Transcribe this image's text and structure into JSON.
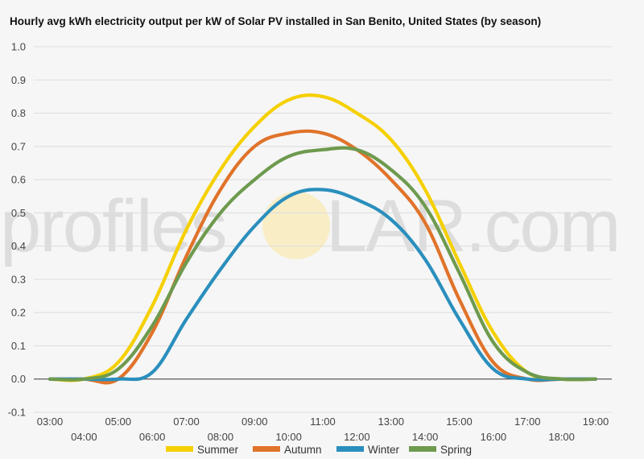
{
  "title": "Hourly avg kWh electricity output per kW of Solar PV installed in San Benito, United States (by season)",
  "watermark": {
    "left": "profiles",
    "right": "LAR.com"
  },
  "colors": {
    "summer": "#f5d000",
    "autumn": "#e0732a",
    "winter": "#2a8fbd",
    "spring": "#6e9a4e",
    "zero_line": "#333333",
    "grid": "#dddddd"
  },
  "chart_data": {
    "type": "line",
    "title": "Hourly avg kWh electricity output per kW of Solar PV installed in San Benito, United States (by season)",
    "xlabel": "",
    "ylabel": "",
    "x": [
      "03:00",
      "04:00",
      "05:00",
      "06:00",
      "07:00",
      "08:00",
      "09:00",
      "10:00",
      "11:00",
      "12:00",
      "13:00",
      "14:00",
      "15:00",
      "16:00",
      "17:00",
      "18:00",
      "19:00"
    ],
    "ylim": [
      -0.1,
      1.0
    ],
    "yticks": [
      "-0.1",
      "0.0",
      "0.1",
      "0.2",
      "0.3",
      "0.4",
      "0.5",
      "0.6",
      "0.7",
      "0.8",
      "0.9",
      "1.0"
    ],
    "grid": true,
    "legend_position": "bottom",
    "series": [
      {
        "name": "Summer",
        "color": "#f5d000",
        "values": [
          0.0,
          0.0,
          0.05,
          0.22,
          0.45,
          0.63,
          0.76,
          0.84,
          0.85,
          0.8,
          0.72,
          0.57,
          0.35,
          0.14,
          0.02,
          0.0,
          0.0
        ]
      },
      {
        "name": "Autumn",
        "color": "#e0732a",
        "values": [
          0.0,
          0.0,
          0.0,
          0.14,
          0.37,
          0.57,
          0.7,
          0.74,
          0.74,
          0.69,
          0.6,
          0.47,
          0.24,
          0.05,
          0.0,
          0.0,
          0.0
        ]
      },
      {
        "name": "Winter",
        "color": "#2a8fbd",
        "values": [
          0.0,
          0.0,
          0.0,
          0.02,
          0.18,
          0.33,
          0.46,
          0.55,
          0.57,
          0.54,
          0.48,
          0.36,
          0.18,
          0.03,
          0.0,
          0.0,
          0.0
        ]
      },
      {
        "name": "Spring",
        "color": "#6e9a4e",
        "values": [
          0.0,
          0.0,
          0.03,
          0.16,
          0.35,
          0.5,
          0.6,
          0.67,
          0.69,
          0.69,
          0.63,
          0.52,
          0.32,
          0.11,
          0.02,
          0.0,
          0.0
        ]
      }
    ]
  }
}
